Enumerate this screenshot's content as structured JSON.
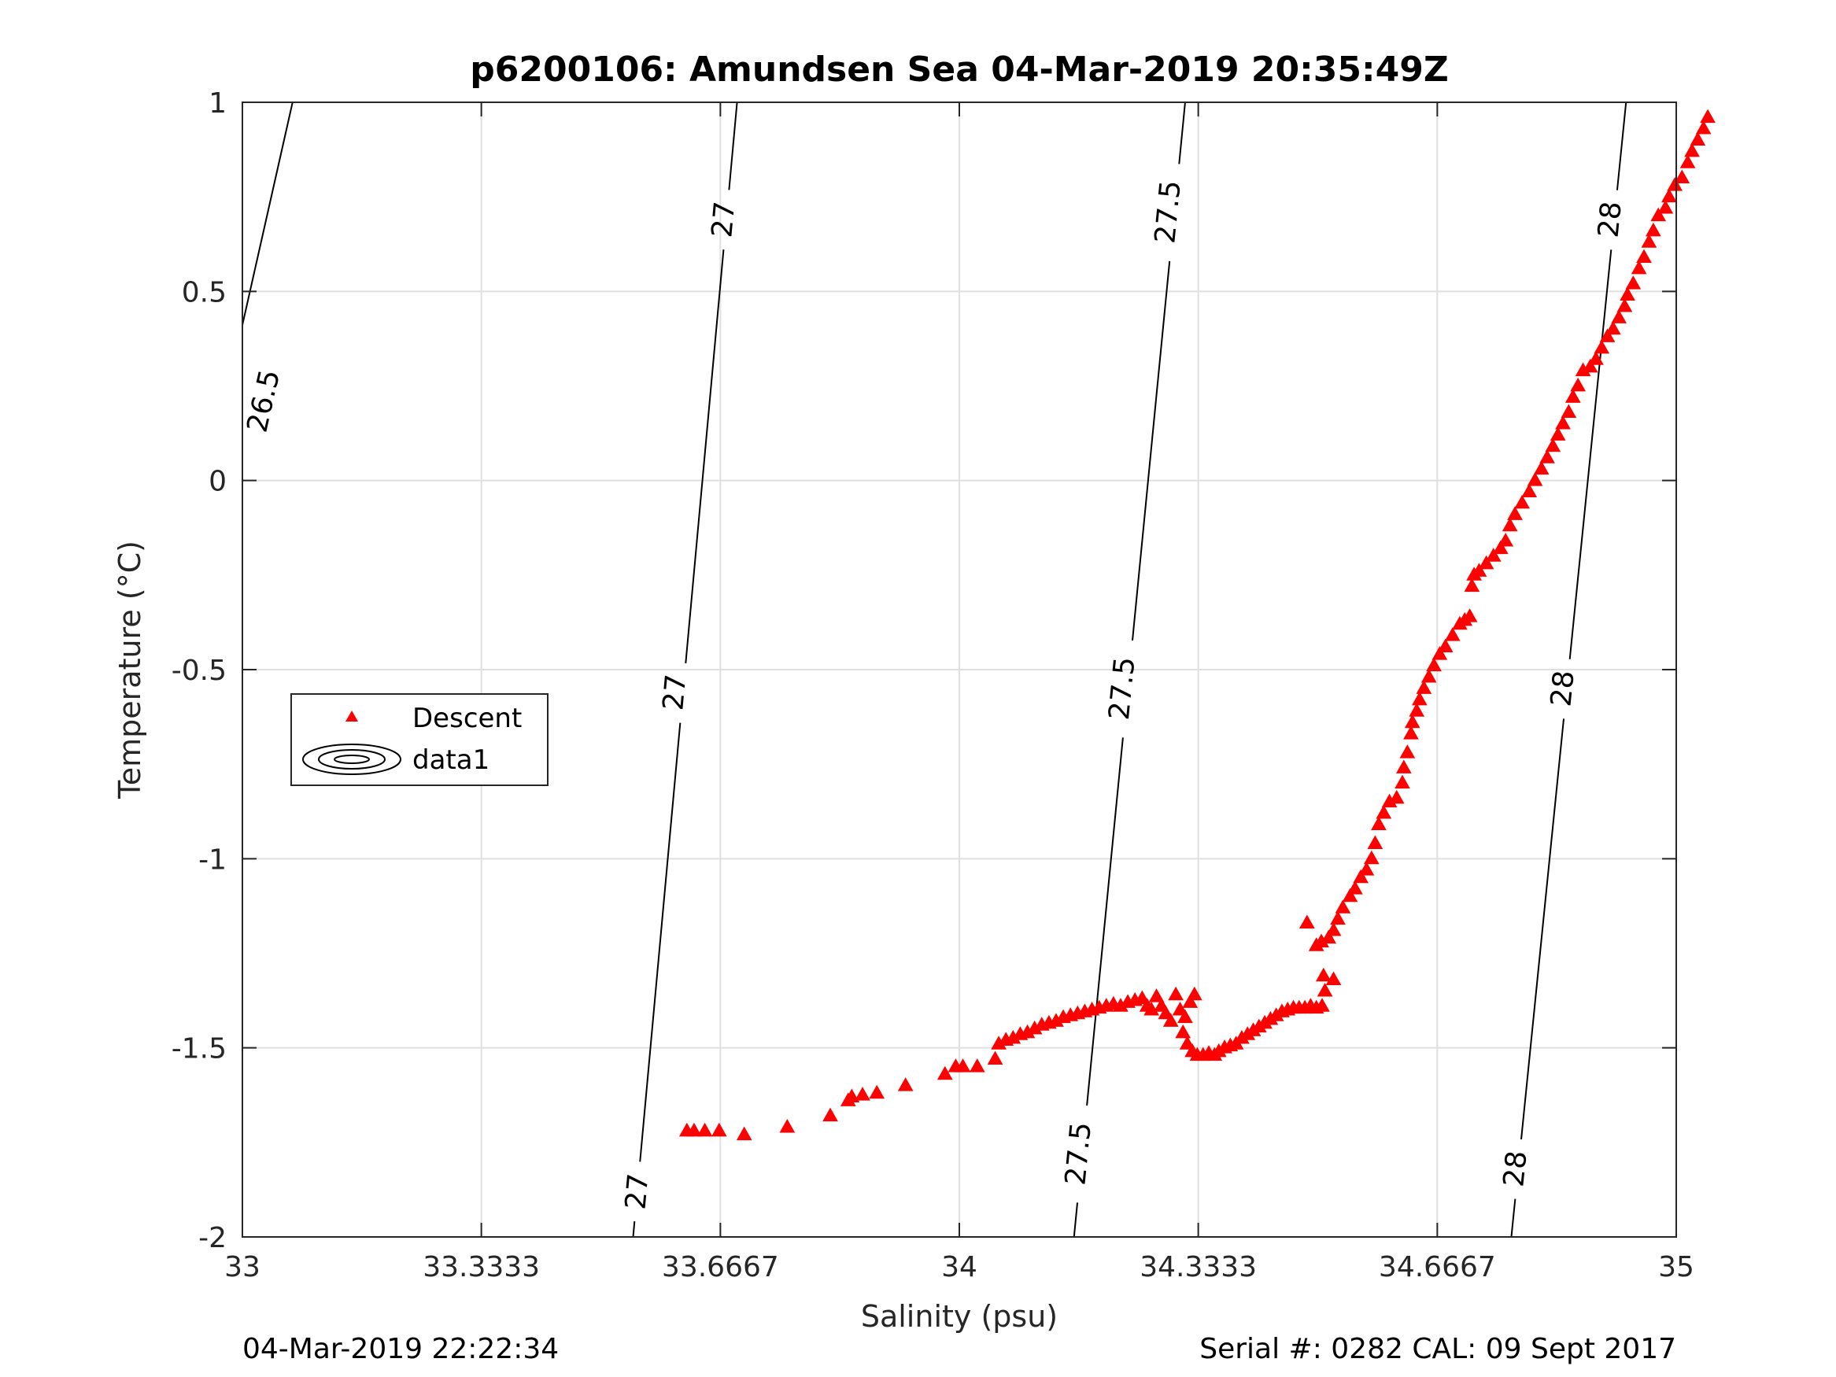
{
  "chart_data": {
    "type": "scatter",
    "title": "p6200106: Amundsen Sea 04-Mar-2019 20:35:49Z",
    "xlabel": "Salinity (psu)",
    "ylabel": "Temperature (°C)",
    "xlim": [
      33,
      35
    ],
    "ylim": [
      -2,
      1
    ],
    "x_ticks": [
      "33",
      "33.3333",
      "33.6667",
      "34",
      "34.3333",
      "34.6667",
      "35"
    ],
    "x_tick_values": [
      33,
      33.3333,
      33.6667,
      34,
      34.3333,
      34.6667,
      35
    ],
    "y_ticks": [
      "1",
      "0.5",
      "0",
      "-0.5",
      "-1",
      "-1.5",
      "-2"
    ],
    "y_tick_values": [
      1,
      0.5,
      0,
      -0.5,
      -1,
      -1.5,
      -2
    ],
    "grid": true,
    "legend": {
      "placement": "left",
      "entries": [
        "Descent",
        "data1"
      ]
    },
    "series": [
      {
        "name": "Descent",
        "marker": "triangle",
        "color": "#ff0000",
        "points": [
          [
            33.62,
            -1.72
          ],
          [
            33.63,
            -1.72
          ],
          [
            33.645,
            -1.72
          ],
          [
            33.665,
            -1.72
          ],
          [
            33.7,
            -1.73
          ],
          [
            33.76,
            -1.71
          ],
          [
            33.82,
            -1.68
          ],
          [
            33.845,
            -1.64
          ],
          [
            33.85,
            -1.63
          ],
          [
            33.865,
            -1.625
          ],
          [
            33.885,
            -1.62
          ],
          [
            33.925,
            -1.6
          ],
          [
            33.98,
            -1.57
          ],
          [
            33.995,
            -1.55
          ],
          [
            34.005,
            -1.55
          ],
          [
            34.025,
            -1.55
          ],
          [
            34.05,
            -1.53
          ],
          [
            34.055,
            -1.49
          ],
          [
            34.065,
            -1.48
          ],
          [
            34.075,
            -1.475
          ],
          [
            34.085,
            -1.465
          ],
          [
            34.095,
            -1.46
          ],
          [
            34.105,
            -1.45
          ],
          [
            34.115,
            -1.44
          ],
          [
            34.125,
            -1.435
          ],
          [
            34.135,
            -1.43
          ],
          [
            34.145,
            -1.42
          ],
          [
            34.155,
            -1.415
          ],
          [
            34.165,
            -1.41
          ],
          [
            34.175,
            -1.405
          ],
          [
            34.185,
            -1.4
          ],
          [
            34.195,
            -1.395
          ],
          [
            34.205,
            -1.39
          ],
          [
            34.215,
            -1.385
          ],
          [
            34.225,
            -1.39
          ],
          [
            34.235,
            -1.38
          ],
          [
            34.245,
            -1.375
          ],
          [
            34.255,
            -1.37
          ],
          [
            34.262,
            -1.39
          ],
          [
            34.268,
            -1.4
          ],
          [
            34.275,
            -1.365
          ],
          [
            34.282,
            -1.39
          ],
          [
            34.288,
            -1.41
          ],
          [
            34.295,
            -1.43
          ],
          [
            34.302,
            -1.36
          ],
          [
            34.308,
            -1.4
          ],
          [
            34.315,
            -1.42
          ],
          [
            34.322,
            -1.38
          ],
          [
            34.328,
            -1.36
          ],
          [
            34.312,
            -1.46
          ],
          [
            34.318,
            -1.49
          ],
          [
            34.325,
            -1.51
          ],
          [
            34.332,
            -1.52
          ],
          [
            34.34,
            -1.52
          ],
          [
            34.348,
            -1.515
          ],
          [
            34.356,
            -1.52
          ],
          [
            34.362,
            -1.51
          ],
          [
            34.37,
            -1.5
          ],
          [
            34.378,
            -1.495
          ],
          [
            34.386,
            -1.49
          ],
          [
            34.394,
            -1.475
          ],
          [
            34.402,
            -1.465
          ],
          [
            34.41,
            -1.455
          ],
          [
            34.418,
            -1.445
          ],
          [
            34.426,
            -1.435
          ],
          [
            34.434,
            -1.425
          ],
          [
            34.442,
            -1.415
          ],
          [
            34.45,
            -1.405
          ],
          [
            34.458,
            -1.4
          ],
          [
            34.466,
            -1.395
          ],
          [
            34.474,
            -1.395
          ],
          [
            34.482,
            -1.395
          ],
          [
            34.49,
            -1.39
          ],
          [
            34.498,
            -1.395
          ],
          [
            34.506,
            -1.39
          ],
          [
            34.51,
            -1.35
          ],
          [
            34.508,
            -1.31
          ],
          [
            34.522,
            -1.32
          ],
          [
            34.498,
            -1.23
          ],
          [
            34.505,
            -1.22
          ],
          [
            34.485,
            -1.17
          ],
          [
            34.515,
            -1.21
          ],
          [
            34.522,
            -1.19
          ],
          [
            34.528,
            -1.16
          ],
          [
            34.535,
            -1.13
          ],
          [
            34.545,
            -1.1
          ],
          [
            34.552,
            -1.08
          ],
          [
            34.56,
            -1.05
          ],
          [
            34.568,
            -1.03
          ],
          [
            34.575,
            -1.0
          ],
          [
            34.58,
            -0.96
          ],
          [
            34.585,
            -0.91
          ],
          [
            34.592,
            -0.88
          ],
          [
            34.6,
            -0.85
          ],
          [
            34.61,
            -0.84
          ],
          [
            34.618,
            -0.8
          ],
          [
            34.62,
            -0.76
          ],
          [
            34.625,
            -0.72
          ],
          [
            34.63,
            -0.67
          ],
          [
            34.632,
            -0.64
          ],
          [
            34.638,
            -0.61
          ],
          [
            34.642,
            -0.58
          ],
          [
            34.648,
            -0.55
          ],
          [
            34.655,
            -0.52
          ],
          [
            34.662,
            -0.49
          ],
          [
            34.67,
            -0.46
          ],
          [
            34.678,
            -0.44
          ],
          [
            34.688,
            -0.41
          ],
          [
            34.698,
            -0.38
          ],
          [
            34.705,
            -0.37
          ],
          [
            34.712,
            -0.36
          ],
          [
            34.718,
            -0.25
          ],
          [
            34.715,
            -0.28
          ],
          [
            34.725,
            -0.24
          ],
          [
            34.735,
            -0.22
          ],
          [
            34.745,
            -0.2
          ],
          [
            34.755,
            -0.18
          ],
          [
            34.762,
            -0.16
          ],
          [
            34.768,
            -0.12
          ],
          [
            34.775,
            -0.09
          ],
          [
            34.785,
            -0.06
          ],
          [
            34.795,
            -0.03
          ],
          [
            34.803,
            0.0
          ],
          [
            34.812,
            0.03
          ],
          [
            34.82,
            0.06
          ],
          [
            34.828,
            0.09
          ],
          [
            34.835,
            0.12
          ],
          [
            34.842,
            0.15
          ],
          [
            34.85,
            0.18
          ],
          [
            34.856,
            0.22
          ],
          [
            34.863,
            0.25
          ],
          [
            34.87,
            0.29
          ],
          [
            34.88,
            0.3
          ],
          [
            34.888,
            0.32
          ],
          [
            34.896,
            0.35
          ],
          [
            34.904,
            0.38
          ],
          [
            34.912,
            0.4
          ],
          [
            34.92,
            0.43
          ],
          [
            34.928,
            0.46
          ],
          [
            34.932,
            0.49
          ],
          [
            34.94,
            0.52
          ],
          [
            34.948,
            0.56
          ],
          [
            34.955,
            0.59
          ],
          [
            34.962,
            0.63
          ],
          [
            34.968,
            0.66
          ],
          [
            34.975,
            0.7
          ],
          [
            34.985,
            0.72
          ],
          [
            34.99,
            0.75
          ],
          [
            34.998,
            0.78
          ],
          [
            35.008,
            0.8
          ],
          [
            35.016,
            0.84
          ],
          [
            35.022,
            0.87
          ],
          [
            35.03,
            0.9
          ],
          [
            35.038,
            0.93
          ],
          [
            35.044,
            0.96
          ]
        ]
      }
    ],
    "contours": [
      {
        "level": "26.5",
        "path": [
          [
            32.9,
            -0.43
          ],
          [
            33.07,
            1.0
          ]
        ],
        "labels": [
          {
            "text": "26.5",
            "at": [
              33.03,
              0.21
            ]
          }
        ]
      },
      {
        "level": "27",
        "path": [
          [
            33.545,
            -2.0
          ],
          [
            33.69,
            1.0
          ]
        ],
        "labels": [
          {
            "text": "27",
            "at": [
              33.551,
              -1.88
            ]
          },
          {
            "text": "27",
            "at": [
              33.6035,
              -0.56
            ]
          },
          {
            "text": "27",
            "at": [
              33.6715,
              0.69
            ]
          }
        ]
      },
      {
        "level": "27.5",
        "path": [
          [
            34.16,
            -2.0
          ],
          [
            34.315,
            1.0
          ]
        ],
        "labels": [
          {
            "text": "27.5",
            "at": [
              34.1665,
              -1.78
            ]
          },
          {
            "text": "27.5",
            "at": [
              34.2275,
              -0.55
            ]
          },
          {
            "text": "27.5",
            "at": [
              34.2915,
              0.71
            ]
          }
        ]
      },
      {
        "level": "28",
        "path": [
          [
            34.77,
            -2.0
          ],
          [
            34.93,
            1.0
          ]
        ],
        "labels": [
          {
            "text": "28",
            "at": [
              34.776,
              -1.82
            ]
          },
          {
            "text": "28",
            "at": [
              34.842,
              -0.55
            ]
          },
          {
            "text": "28",
            "at": [
              34.908,
              0.69
            ]
          }
        ]
      }
    ]
  },
  "footer": {
    "left": "04-Mar-2019 22:22:34",
    "right": "Serial #: 0282  CAL: 09 Sept 2017"
  },
  "colors": {
    "data": "#ff0000",
    "contour": "#000000",
    "grid": "#dfdfdf",
    "axis": "#262626"
  }
}
